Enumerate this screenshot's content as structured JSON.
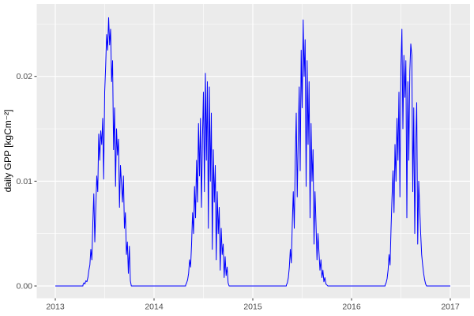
{
  "figure": {
    "kind": "ggplot2-style time series plot",
    "panel_background": "#ebebeb",
    "grid_color": "#ffffff",
    "tick_label_color": "#4d4d4d",
    "tick_mark_color": "#333333",
    "axis_title_color": "#000000"
  },
  "y_axis": {
    "title": "daily GPP [kgCm⁻²]",
    "ticks": [
      {
        "value": 0.0,
        "label": "0.00"
      },
      {
        "value": 0.01,
        "label": "0.01"
      },
      {
        "value": 0.02,
        "label": "0.02"
      }
    ],
    "minor": [
      0.005,
      0.015,
      0.025
    ]
  },
  "x_axis": {
    "title": "",
    "ticks": [
      {
        "value": 2013,
        "label": "2013"
      },
      {
        "value": 2014,
        "label": "2014"
      },
      {
        "value": 2015,
        "label": "2015"
      },
      {
        "value": 2016,
        "label": "2016"
      },
      {
        "value": 2017,
        "label": "2017"
      }
    ],
    "minor": [
      2013.5,
      2014.5,
      2015.5,
      2016.5
    ]
  },
  "chart_data": {
    "type": "line",
    "title": "",
    "xlabel": "",
    "ylabel": "daily GPP [kgCm⁻²]",
    "x_unit": "decimal year",
    "xlim": [
      2013.0,
      2017.0
    ],
    "ylim": [
      0.0,
      0.026
    ],
    "grid": true,
    "legend": false,
    "annual_peaks": [
      {
        "year": 2013,
        "peak": 0.0256
      },
      {
        "year": 2014,
        "peak": 0.0203
      },
      {
        "year": 2015,
        "peak": 0.0254
      },
      {
        "year": 2016,
        "peak": 0.0245
      }
    ],
    "series": [
      {
        "name": "daily GPP",
        "color": "#0000ff",
        "segments": [
          {
            "x0": 2013.0,
            "dx": 0.28,
            "y": [
              0,
              0
            ]
          },
          {
            "x0": 2013.28,
            "dx": 0.01,
            "y": [
              0.0001,
              0.0003,
              0.0002,
              0.0005,
              0.0004,
              0.0008,
              0.0015,
              0.002,
              0.0035,
              0.0025,
              0.006,
              0.0088,
              0.0042,
              0.0075,
              0.0105,
              0.009,
              0.0145,
              0.012,
              0.0148,
              0.0135,
              0.016,
              0.0102,
              0.0185,
              0.021,
              0.024,
              0.0225,
              0.0256,
              0.023,
              0.0245,
              0.0195,
              0.0215,
              0.013,
              0.017,
              0.0095,
              0.015,
              0.0125,
              0.014,
              0.0075,
              0.0115,
              0.0098,
              0.008,
              0.0105,
              0.0055,
              0.007,
              0.003,
              0.0042,
              0.0012,
              0.0038,
              0.0005,
              0
            ]
          },
          {
            "x0": 2013.77,
            "dx": 0.55,
            "y": [
              0,
              0
            ]
          },
          {
            "x0": 2014.32,
            "dx": 0.01,
            "y": [
              0.0001,
              0.0003,
              0.0006,
              0.0012,
              0.0025,
              0.0018,
              0.004,
              0.007,
              0.005,
              0.0095,
              0.0065,
              0.012,
              0.008,
              0.0155,
              0.0105,
              0.016,
              0.0075,
              0.014,
              0.0185,
              0.009,
              0.0203,
              0.012,
              0.0195,
              0.0055,
              0.019,
              0.01,
              0.0165,
              0.0035,
              0.013,
              0.008,
              0.0115,
              0.0025,
              0.009,
              0.005,
              0.0075,
              0.0015,
              0.0055,
              0.003,
              0.004,
              0.0008,
              0.0028,
              0.001,
              0.0018,
              0.0003,
              0
            ]
          },
          {
            "x0": 2014.76,
            "dx": 0.58,
            "y": [
              0,
              0
            ]
          },
          {
            "x0": 2015.34,
            "dx": 0.01,
            "y": [
              0.0001,
              0.0003,
              0.0008,
              0.0018,
              0.0035,
              0.0022,
              0.006,
              0.009,
              0.0055,
              0.012,
              0.0165,
              0.0085,
              0.014,
              0.019,
              0.011,
              0.0225,
              0.017,
              0.0254,
              0.02,
              0.0235,
              0.0095,
              0.0215,
              0.0135,
              0.0195,
              0.0065,
              0.0155,
              0.01,
              0.013,
              0.004,
              0.009,
              0.006,
              0.0025,
              0.005,
              0.0032,
              0.0015,
              0.0025,
              0.0008,
              0.0015,
              0.0004,
              0.0008,
              0.0002,
              0.0001,
              0
            ]
          },
          {
            "x0": 2015.76,
            "dx": 0.58,
            "y": [
              0,
              0
            ]
          },
          {
            "x0": 2016.34,
            "dx": 0.01,
            "y": [
              0.0001,
              0.0003,
              0.0007,
              0.0015,
              0.003,
              0.002,
              0.0055,
              0.0085,
              0.011,
              0.007,
              0.0135,
              0.01,
              0.016,
              0.012,
              0.0185,
              0.0085,
              0.021,
              0.0245,
              0.015,
              0.022,
              0.018,
              0.0215,
              0.0065,
              0.0195,
              0.012,
              0.0205,
              0.0231,
              0.022,
              0.009,
              0.017,
              0.005,
              0.0135,
              0.0175,
              0.004,
              0.01,
              0.0075,
              0.005,
              0.003,
              0.002,
              0.0012,
              0.0006,
              0.0002,
              0
            ]
          },
          {
            "x0": 2016.76,
            "dx": 0.24,
            "y": [
              0,
              0
            ]
          }
        ]
      }
    ]
  }
}
